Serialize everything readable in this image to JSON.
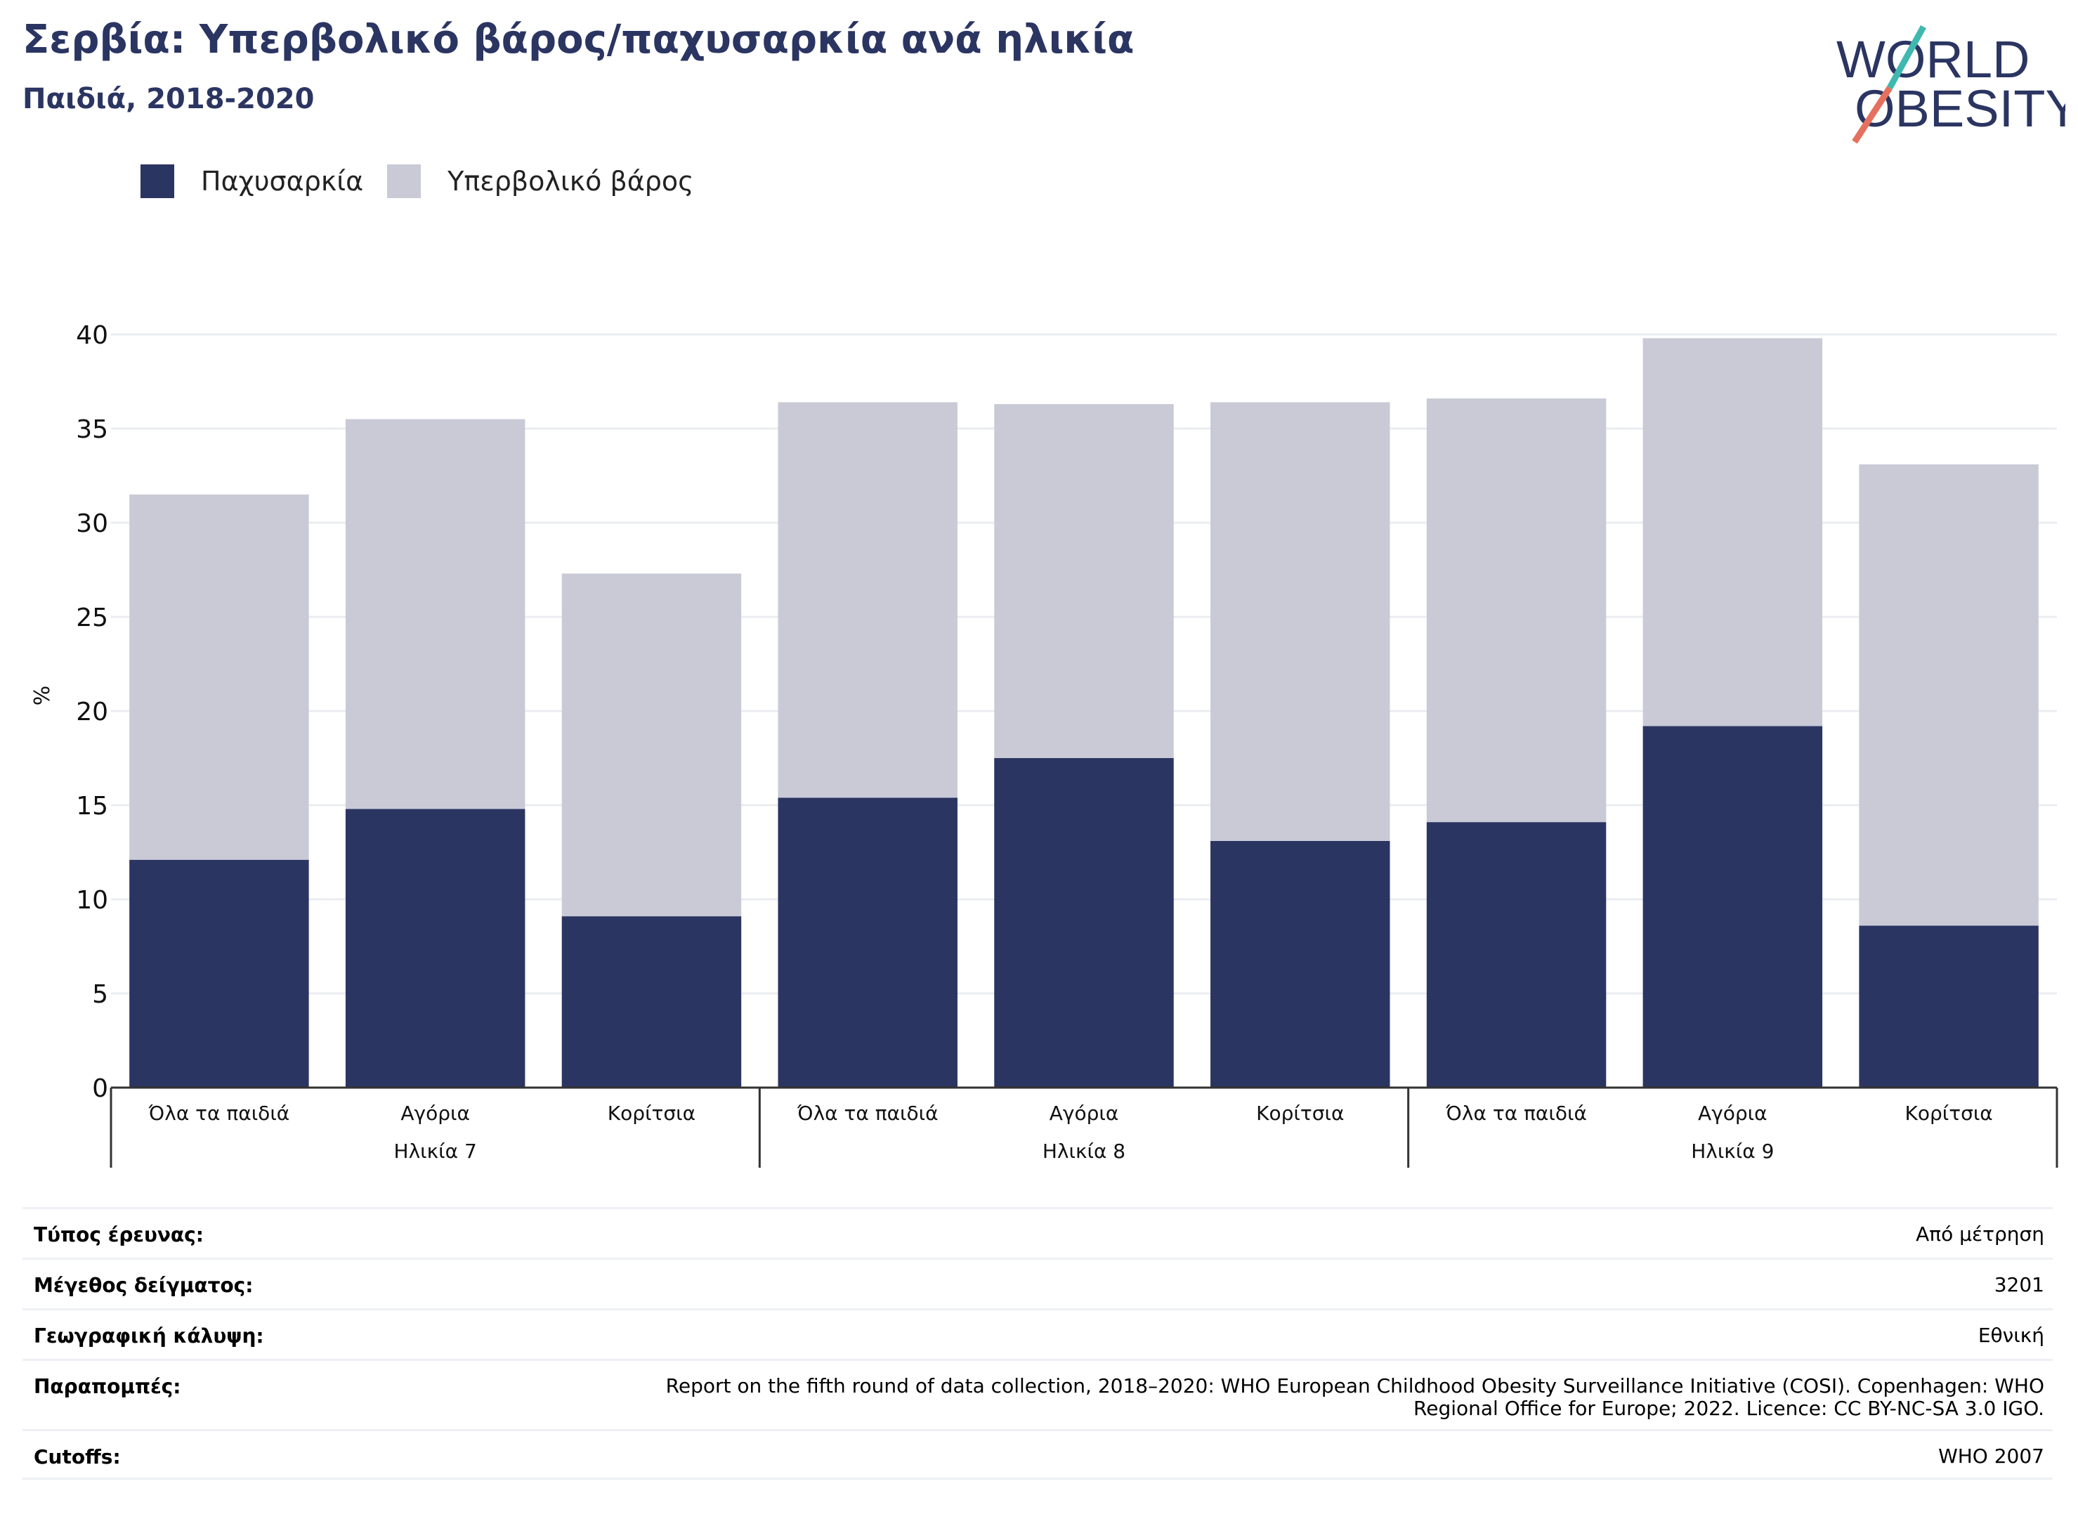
{
  "header": {
    "title": "Σερβία: Υπερβολικό βάρος/παχυσαρκία ανά ηλικία",
    "subtitle": "Παιδιά, 2018-2020"
  },
  "logo": {
    "line1": "WORLD",
    "line2": "OBESITY",
    "colors": {
      "text": "#2b3562",
      "slash_top": "#3fb8b0",
      "slash_bottom": "#e5705e"
    }
  },
  "legend": {
    "items": [
      {
        "label": "Παχυσαρκία",
        "color": "#2b3562"
      },
      {
        "label": "Υπερβολικό βάρος",
        "color": "#c9cad6"
      }
    ]
  },
  "chart_data": {
    "type": "bar",
    "stacked": true,
    "ylabel": "%",
    "ylim": [
      0,
      40
    ],
    "yticks": [
      0,
      5,
      10,
      15,
      20,
      25,
      30,
      35,
      40
    ],
    "grid": true,
    "categories": [
      "Όλα τα παιδιά",
      "Αγόρια",
      "Κορίτσια",
      "Όλα τα παιδιά",
      "Αγόρια",
      "Κορίτσια",
      "Όλα τα παιδιά",
      "Αγόρια",
      "Κορίτσια"
    ],
    "groups": [
      {
        "label": "Ηλικία 7",
        "count": 3
      },
      {
        "label": "Ηλικία 8",
        "count": 3
      },
      {
        "label": "Ηλικία 9",
        "count": 3
      }
    ],
    "series": [
      {
        "name": "Παχυσαρκία",
        "color": "#2b3562",
        "values": [
          12.1,
          14.8,
          9.1,
          15.4,
          17.5,
          13.1,
          14.1,
          19.2,
          8.6
        ]
      },
      {
        "name": "Υπερβολικό βάρος",
        "color": "#c9cad6",
        "values": [
          19.4,
          20.7,
          18.2,
          21.0,
          18.8,
          23.3,
          22.5,
          20.6,
          24.5
        ]
      }
    ]
  },
  "meta": [
    {
      "label": "Τύπος έρευνας:",
      "value": "Από μέτρηση"
    },
    {
      "label": "Μέγεθος δείγματος:",
      "value": "3201"
    },
    {
      "label": "Γεωγραφική κάλυψη:",
      "value": "Εθνική"
    },
    {
      "label": "Παραπομπές:",
      "value_lines": [
        "Report on the fifth round of data collection, 2018–2020: WHO European Childhood Obesity Surveillance Initiative (COSI). Copenhagen: WHO",
        "Regional Office for Europe; 2022. Licence: CC BY-NC-SA 3.0 IGO."
      ]
    },
    {
      "label": "Cutoffs:",
      "value": "WHO 2007"
    }
  ]
}
